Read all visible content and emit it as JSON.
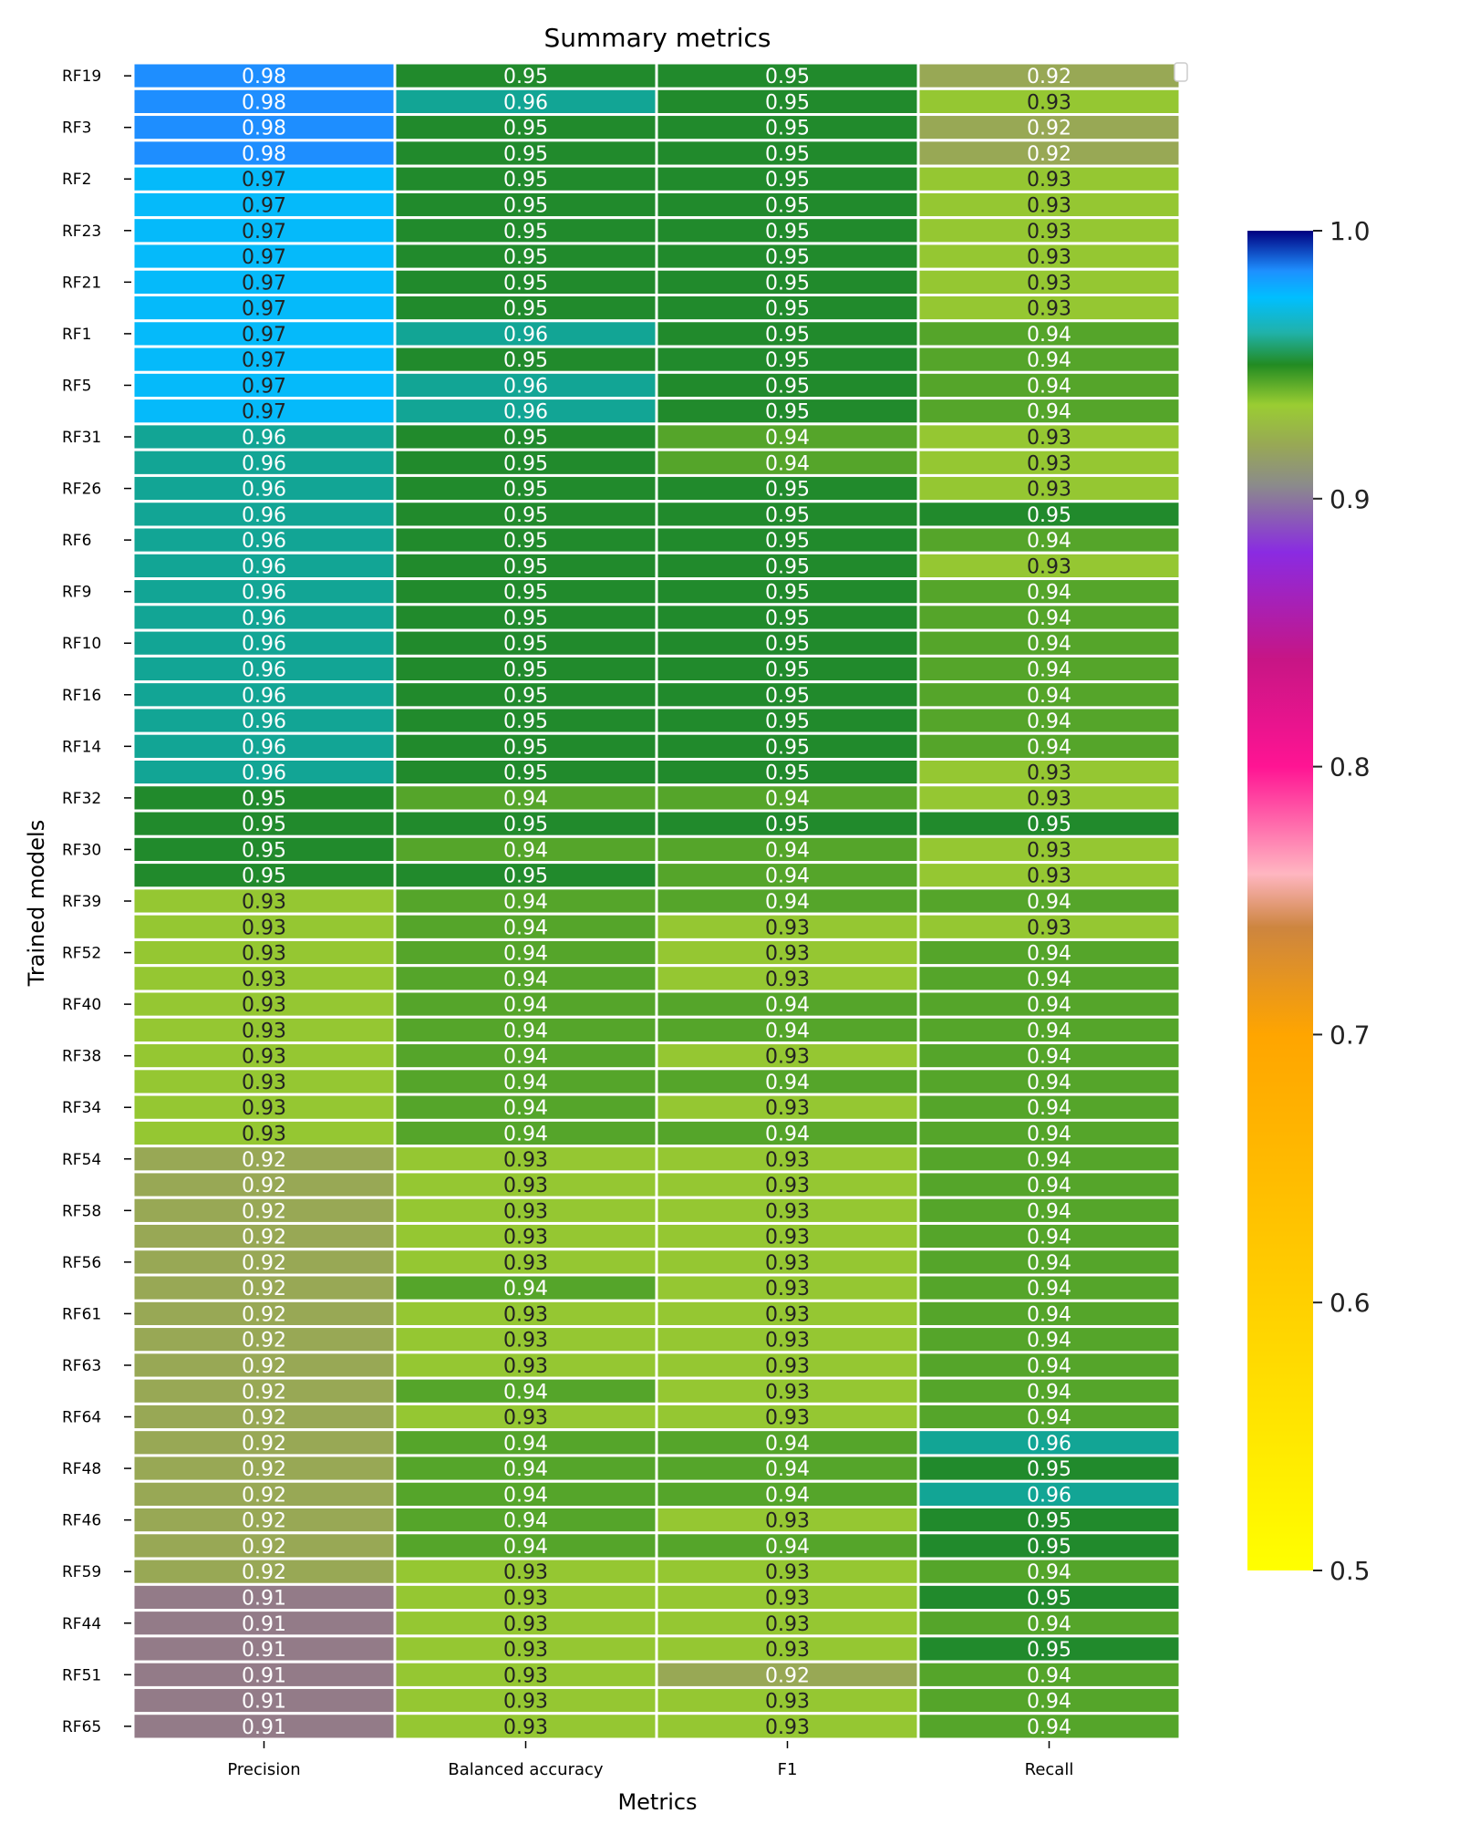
{
  "chart_data": {
    "type": "heatmap",
    "title": "Summary metrics",
    "xlabel": "Metrics",
    "ylabel": "Trained models",
    "columns": [
      "Precision",
      "Balanced accuracy",
      "F1",
      "Recall"
    ],
    "row_tick_labels": [
      "RF19",
      "",
      "RF3",
      "",
      "RF2",
      "",
      "RF23",
      "",
      "RF21",
      "",
      "RF1",
      "",
      "RF5",
      "",
      "RF31",
      "",
      "RF26",
      "",
      "RF6",
      "",
      "RF9",
      "",
      "RF10",
      "",
      "RF16",
      "",
      "RF14",
      "",
      "RF32",
      "",
      "RF30",
      "",
      "RF39",
      "",
      "RF52",
      "",
      "RF40",
      "",
      "RF38",
      "",
      "RF34",
      "",
      "RF54",
      "",
      "RF58",
      "",
      "RF56",
      "",
      "RF61",
      "",
      "RF63",
      "",
      "RF64",
      "",
      "RF48",
      "",
      "RF46",
      "",
      "RF59",
      "",
      "RF44",
      "",
      "RF51",
      "",
      "RF65"
    ],
    "values": [
      [
        0.98,
        0.95,
        0.95,
        0.92
      ],
      [
        0.98,
        0.96,
        0.95,
        0.93
      ],
      [
        0.98,
        0.95,
        0.95,
        0.92
      ],
      [
        0.98,
        0.95,
        0.95,
        0.92
      ],
      [
        0.97,
        0.95,
        0.95,
        0.93
      ],
      [
        0.97,
        0.95,
        0.95,
        0.93
      ],
      [
        0.97,
        0.95,
        0.95,
        0.93
      ],
      [
        0.97,
        0.95,
        0.95,
        0.93
      ],
      [
        0.97,
        0.95,
        0.95,
        0.93
      ],
      [
        0.97,
        0.95,
        0.95,
        0.93
      ],
      [
        0.97,
        0.96,
        0.95,
        0.94
      ],
      [
        0.97,
        0.95,
        0.95,
        0.94
      ],
      [
        0.97,
        0.96,
        0.95,
        0.94
      ],
      [
        0.97,
        0.96,
        0.95,
        0.94
      ],
      [
        0.96,
        0.95,
        0.94,
        0.93
      ],
      [
        0.96,
        0.95,
        0.94,
        0.93
      ],
      [
        0.96,
        0.95,
        0.95,
        0.93
      ],
      [
        0.96,
        0.95,
        0.95,
        0.95
      ],
      [
        0.96,
        0.95,
        0.95,
        0.94
      ],
      [
        0.96,
        0.95,
        0.95,
        0.93
      ],
      [
        0.96,
        0.95,
        0.95,
        0.94
      ],
      [
        0.96,
        0.95,
        0.95,
        0.94
      ],
      [
        0.96,
        0.95,
        0.95,
        0.94
      ],
      [
        0.96,
        0.95,
        0.95,
        0.94
      ],
      [
        0.96,
        0.95,
        0.95,
        0.94
      ],
      [
        0.96,
        0.95,
        0.95,
        0.94
      ],
      [
        0.96,
        0.95,
        0.95,
        0.94
      ],
      [
        0.96,
        0.95,
        0.95,
        0.93
      ],
      [
        0.95,
        0.94,
        0.94,
        0.93
      ],
      [
        0.95,
        0.95,
        0.95,
        0.95
      ],
      [
        0.95,
        0.94,
        0.94,
        0.93
      ],
      [
        0.95,
        0.95,
        0.94,
        0.93
      ],
      [
        0.93,
        0.94,
        0.94,
        0.94
      ],
      [
        0.93,
        0.94,
        0.93,
        0.93
      ],
      [
        0.93,
        0.94,
        0.93,
        0.94
      ],
      [
        0.93,
        0.94,
        0.93,
        0.94
      ],
      [
        0.93,
        0.94,
        0.94,
        0.94
      ],
      [
        0.93,
        0.94,
        0.94,
        0.94
      ],
      [
        0.93,
        0.94,
        0.93,
        0.94
      ],
      [
        0.93,
        0.94,
        0.94,
        0.94
      ],
      [
        0.93,
        0.94,
        0.93,
        0.94
      ],
      [
        0.93,
        0.94,
        0.94,
        0.94
      ],
      [
        0.92,
        0.93,
        0.93,
        0.94
      ],
      [
        0.92,
        0.93,
        0.93,
        0.94
      ],
      [
        0.92,
        0.93,
        0.93,
        0.94
      ],
      [
        0.92,
        0.93,
        0.93,
        0.94
      ],
      [
        0.92,
        0.93,
        0.93,
        0.94
      ],
      [
        0.92,
        0.94,
        0.93,
        0.94
      ],
      [
        0.92,
        0.93,
        0.93,
        0.94
      ],
      [
        0.92,
        0.93,
        0.93,
        0.94
      ],
      [
        0.92,
        0.93,
        0.93,
        0.94
      ],
      [
        0.92,
        0.94,
        0.93,
        0.94
      ],
      [
        0.92,
        0.93,
        0.93,
        0.94
      ],
      [
        0.92,
        0.94,
        0.94,
        0.96
      ],
      [
        0.92,
        0.94,
        0.94,
        0.95
      ],
      [
        0.92,
        0.94,
        0.94,
        0.96
      ],
      [
        0.92,
        0.94,
        0.93,
        0.95
      ],
      [
        0.92,
        0.94,
        0.94,
        0.95
      ],
      [
        0.92,
        0.93,
        0.93,
        0.94
      ],
      [
        0.91,
        0.93,
        0.93,
        0.95
      ],
      [
        0.91,
        0.93,
        0.93,
        0.94
      ],
      [
        0.91,
        0.93,
        0.93,
        0.95
      ],
      [
        0.91,
        0.93,
        0.92,
        0.94
      ],
      [
        0.91,
        0.93,
        0.93,
        0.94
      ],
      [
        0.91,
        0.93,
        0.93,
        0.94
      ]
    ],
    "value_colors": {
      "0.91": "#937B88",
      "0.92": "#98A855",
      "0.93": "#95C732",
      "0.94": "#55A52A",
      "0.95": "#218A2C",
      "0.96": "#12A595",
      "0.97": "#05BAFA",
      "0.98": "#1E8EFF"
    },
    "dark_text_values": [
      "0.93",
      "0.97"
    ],
    "colorbar": {
      "range": [
        0.5,
        1.0
      ],
      "ticks": [
        "0.5",
        "0.6",
        "0.7",
        "0.8",
        "0.9",
        "1.0"
      ],
      "tick_values": [
        0.5,
        0.6,
        0.7,
        0.8,
        0.9,
        1.0
      ],
      "stops": [
        {
          "v": 0.5,
          "color": "#FFFF00"
        },
        {
          "v": 0.6,
          "color": "#FFD000"
        },
        {
          "v": 0.7,
          "color": "#FFA500"
        },
        {
          "v": 0.74,
          "color": "#CD853F"
        },
        {
          "v": 0.76,
          "color": "#FFB6C1"
        },
        {
          "v": 0.8,
          "color": "#FF1493"
        },
        {
          "v": 0.84,
          "color": "#C71585"
        },
        {
          "v": 0.88,
          "color": "#8A2BE2"
        },
        {
          "v": 0.905,
          "color": "#8B8B8B"
        },
        {
          "v": 0.92,
          "color": "#98A855"
        },
        {
          "v": 0.935,
          "color": "#9ACD32"
        },
        {
          "v": 0.95,
          "color": "#228B22"
        },
        {
          "v": 0.962,
          "color": "#20B2AA"
        },
        {
          "v": 0.975,
          "color": "#00BFFF"
        },
        {
          "v": 0.985,
          "color": "#1E90FF"
        },
        {
          "v": 1.0,
          "color": "#000080"
        }
      ]
    }
  }
}
